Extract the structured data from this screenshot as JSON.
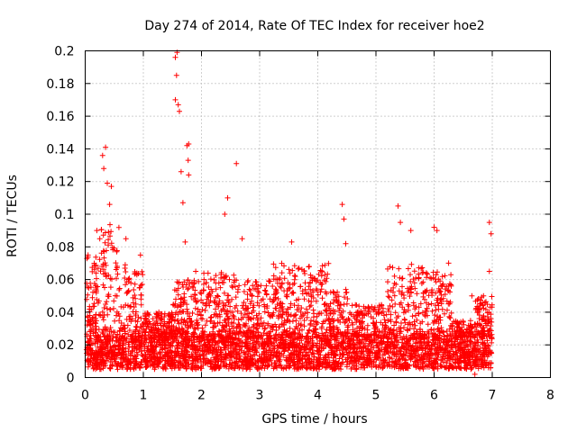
{
  "chart_data": {
    "type": "scatter",
    "title": "Day 274 of 2014, Rate Of TEC Index for receiver hoe2",
    "xlabel": "GPS time / hours",
    "ylabel": "ROTI / TECUs",
    "xlim": [
      0,
      8
    ],
    "ylim": [
      0,
      0.2
    ],
    "grid": true,
    "marker": "+",
    "series_color": "#ff0000",
    "x_ticks": [
      "0",
      "1",
      "2",
      "3",
      "4",
      "5",
      "6",
      "7",
      "8"
    ],
    "y_ticks": [
      "0",
      "0.02",
      "0.04",
      "0.06",
      "0.08",
      "0.1",
      "0.12",
      "0.14",
      "0.16",
      "0.18",
      "0.2"
    ],
    "series": [
      {
        "name": "ROTI",
        "x_range": [
          0.02,
          7.0
        ],
        "baseline_range": [
          0.005,
          0.025
        ],
        "highlights": [
          {
            "x": 0.05,
            "y": 0.075
          },
          {
            "x": 0.08,
            "y": 0.038
          },
          {
            "x": 0.2,
            "y": 0.09
          },
          {
            "x": 0.3,
            "y": 0.136
          },
          {
            "x": 0.35,
            "y": 0.141
          },
          {
            "x": 0.32,
            "y": 0.128
          },
          {
            "x": 0.38,
            "y": 0.119
          },
          {
            "x": 0.45,
            "y": 0.117
          },
          {
            "x": 0.42,
            "y": 0.106
          },
          {
            "x": 0.4,
            "y": 0.089
          },
          {
            "x": 0.7,
            "y": 0.085
          },
          {
            "x": 0.95,
            "y": 0.075
          },
          {
            "x": 1.55,
            "y": 0.196
          },
          {
            "x": 1.58,
            "y": 0.199
          },
          {
            "x": 1.57,
            "y": 0.185
          },
          {
            "x": 1.55,
            "y": 0.17
          },
          {
            "x": 1.6,
            "y": 0.167
          },
          {
            "x": 1.62,
            "y": 0.163
          },
          {
            "x": 1.78,
            "y": 0.143
          },
          {
            "x": 1.75,
            "y": 0.142
          },
          {
            "x": 1.65,
            "y": 0.126
          },
          {
            "x": 1.77,
            "y": 0.133
          },
          {
            "x": 1.78,
            "y": 0.124
          },
          {
            "x": 1.68,
            "y": 0.107
          },
          {
            "x": 1.72,
            "y": 0.083
          },
          {
            "x": 1.9,
            "y": 0.065
          },
          {
            "x": 2.45,
            "y": 0.11
          },
          {
            "x": 2.4,
            "y": 0.1
          },
          {
            "x": 2.6,
            "y": 0.131
          },
          {
            "x": 2.7,
            "y": 0.085
          },
          {
            "x": 3.55,
            "y": 0.083
          },
          {
            "x": 4.42,
            "y": 0.106
          },
          {
            "x": 4.45,
            "y": 0.097
          },
          {
            "x": 4.48,
            "y": 0.082
          },
          {
            "x": 5.38,
            "y": 0.105
          },
          {
            "x": 5.42,
            "y": 0.095
          },
          {
            "x": 5.6,
            "y": 0.09
          },
          {
            "x": 6.0,
            "y": 0.092
          },
          {
            "x": 6.05,
            "y": 0.09
          },
          {
            "x": 6.25,
            "y": 0.07
          },
          {
            "x": 6.95,
            "y": 0.095
          },
          {
            "x": 6.98,
            "y": 0.088
          },
          {
            "x": 6.95,
            "y": 0.065
          },
          {
            "x": 6.65,
            "y": 0.05
          },
          {
            "x": 6.7,
            "y": 0.002
          }
        ]
      }
    ]
  }
}
